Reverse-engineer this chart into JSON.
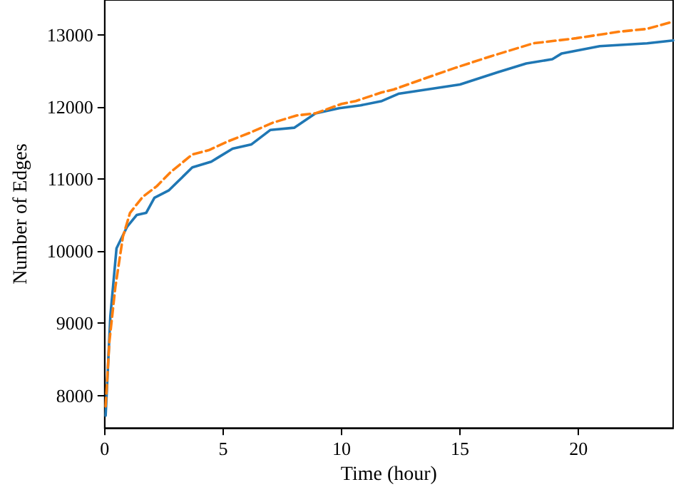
{
  "chart_data": {
    "type": "line",
    "xlabel": "Time (hour)",
    "ylabel": "Number of Edges",
    "xlim": [
      0,
      24
    ],
    "ylim": [
      7550,
      13480
    ],
    "xticks": [
      0,
      5,
      10,
      15,
      20
    ],
    "yticks": [
      8000,
      9000,
      10000,
      11000,
      12000,
      13000
    ],
    "grid": false,
    "marker": "none",
    "series": [
      {
        "color": "#1f77b4",
        "line_style": "solid",
        "x": [
          0.04,
          0.24,
          0.5,
          0.95,
          1.35,
          1.75,
          2.1,
          2.7,
          3.7,
          4.5,
          4.8,
          5.4,
          6.2,
          7.0,
          8.0,
          8.9,
          9.9,
          10.8,
          11.7,
          12.4,
          14.4,
          15.0,
          16.6,
          17.8,
          18.9,
          19.3,
          20.9,
          22.9,
          24
        ],
        "values": [
          7720,
          9100,
          10040,
          10340,
          10500,
          10530,
          10740,
          10840,
          11160,
          11240,
          11300,
          11420,
          11480,
          11680,
          11710,
          11910,
          11980,
          12020,
          12080,
          12180,
          12280,
          12310,
          12480,
          12600,
          12660,
          12740,
          12840,
          12880,
          12920
        ]
      },
      {
        "color": "#ff7f0e",
        "line_style": "dashed",
        "x": [
          0.04,
          0.2,
          0.45,
          0.77,
          1.07,
          1.6,
          2.2,
          2.8,
          3.7,
          4.4,
          5.2,
          6.2,
          7.1,
          8.1,
          8.9,
          10.0,
          10.6,
          11.7,
          12.2,
          13.4,
          14.8,
          16.3,
          18.1,
          19.9,
          21.7,
          22.9,
          24
        ],
        "values": [
          7850,
          8750,
          9500,
          10200,
          10530,
          10750,
          10900,
          11100,
          11340,
          11400,
          11520,
          11650,
          11780,
          11880,
          11910,
          12040,
          12080,
          12200,
          12240,
          12380,
          12540,
          12700,
          12880,
          12950,
          13040,
          13080,
          13180
        ]
      }
    ]
  }
}
